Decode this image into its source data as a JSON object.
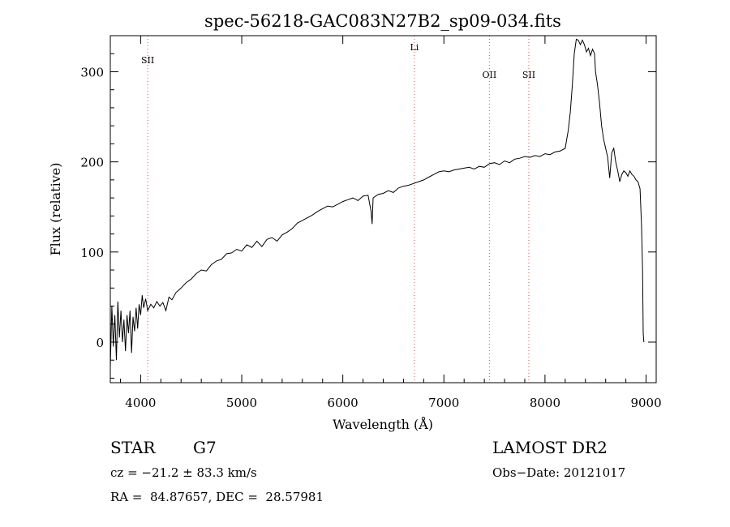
{
  "chart_data": {
    "type": "line",
    "title": "spec-56218-GAC083N27B2_sp09-034.fits",
    "xlabel": "Wavelength (Å)",
    "ylabel": "Flux (relative)",
    "xlim": [
      3700,
      9100
    ],
    "ylim": [
      -45,
      340
    ],
    "grid": false,
    "x_ticks": [
      4000,
      5000,
      6000,
      7000,
      8000,
      9000
    ],
    "y_ticks": [
      0,
      100,
      200,
      300
    ],
    "series": [
      {
        "points": [
          [
            3700,
            -28
          ],
          [
            3715,
            40
          ],
          [
            3730,
            -5
          ],
          [
            3745,
            30
          ],
          [
            3760,
            -20
          ],
          [
            3775,
            45
          ],
          [
            3790,
            5
          ],
          [
            3805,
            35
          ],
          [
            3820,
            0
          ],
          [
            3835,
            25
          ],
          [
            3850,
            -10
          ],
          [
            3865,
            30
          ],
          [
            3880,
            10
          ],
          [
            3895,
            35
          ],
          [
            3910,
            -12
          ],
          [
            3925,
            28
          ],
          [
            3940,
            12
          ],
          [
            3955,
            38
          ],
          [
            3970,
            15
          ],
          [
            3985,
            42
          ],
          [
            4000,
            30
          ],
          [
            4015,
            52
          ],
          [
            4030,
            38
          ],
          [
            4050,
            48
          ],
          [
            4070,
            35
          ],
          [
            4100,
            42
          ],
          [
            4130,
            38
          ],
          [
            4160,
            45
          ],
          [
            4190,
            40
          ],
          [
            4220,
            44
          ],
          [
            4250,
            35
          ],
          [
            4280,
            50
          ],
          [
            4310,
            47
          ],
          [
            4350,
            55
          ],
          [
            4400,
            60
          ],
          [
            4450,
            66
          ],
          [
            4500,
            70
          ],
          [
            4550,
            76
          ],
          [
            4600,
            80
          ],
          [
            4650,
            79
          ],
          [
            4700,
            86
          ],
          [
            4750,
            90
          ],
          [
            4800,
            92
          ],
          [
            4850,
            98
          ],
          [
            4900,
            99
          ],
          [
            4950,
            103
          ],
          [
            5000,
            101
          ],
          [
            5050,
            108
          ],
          [
            5100,
            105
          ],
          [
            5150,
            112
          ],
          [
            5200,
            106
          ],
          [
            5250,
            114
          ],
          [
            5300,
            116
          ],
          [
            5350,
            112
          ],
          [
            5400,
            119
          ],
          [
            5450,
            122
          ],
          [
            5500,
            126
          ],
          [
            5550,
            132
          ],
          [
            5600,
            135
          ],
          [
            5650,
            138
          ],
          [
            5700,
            141
          ],
          [
            5750,
            145
          ],
          [
            5800,
            148
          ],
          [
            5850,
            151
          ],
          [
            5900,
            150
          ],
          [
            5950,
            153
          ],
          [
            6000,
            156
          ],
          [
            6050,
            158
          ],
          [
            6100,
            160
          ],
          [
            6150,
            157
          ],
          [
            6200,
            162
          ],
          [
            6250,
            163
          ],
          [
            6280,
            145
          ],
          [
            6290,
            131
          ],
          [
            6300,
            160
          ],
          [
            6350,
            164
          ],
          [
            6400,
            165
          ],
          [
            6450,
            168
          ],
          [
            6500,
            166
          ],
          [
            6550,
            171
          ],
          [
            6600,
            173
          ],
          [
            6650,
            174
          ],
          [
            6700,
            176
          ],
          [
            6750,
            178
          ],
          [
            6800,
            180
          ],
          [
            6850,
            183
          ],
          [
            6900,
            186
          ],
          [
            6950,
            189
          ],
          [
            7000,
            190
          ],
          [
            7050,
            189
          ],
          [
            7100,
            191
          ],
          [
            7150,
            192
          ],
          [
            7200,
            193
          ],
          [
            7250,
            194
          ],
          [
            7300,
            192
          ],
          [
            7350,
            195
          ],
          [
            7400,
            194
          ],
          [
            7450,
            198
          ],
          [
            7500,
            199
          ],
          [
            7550,
            197
          ],
          [
            7600,
            201
          ],
          [
            7650,
            199
          ],
          [
            7700,
            203
          ],
          [
            7750,
            204
          ],
          [
            7800,
            206
          ],
          [
            7850,
            205
          ],
          [
            7900,
            207
          ],
          [
            7950,
            206
          ],
          [
            8000,
            209
          ],
          [
            8050,
            208
          ],
          [
            8100,
            211
          ],
          [
            8150,
            212
          ],
          [
            8200,
            215
          ],
          [
            8230,
            235
          ],
          [
            8250,
            255
          ],
          [
            8270,
            285
          ],
          [
            8290,
            320
          ],
          [
            8310,
            336
          ],
          [
            8330,
            335
          ],
          [
            8350,
            330
          ],
          [
            8370,
            335
          ],
          [
            8390,
            330
          ],
          [
            8410,
            322
          ],
          [
            8430,
            326
          ],
          [
            8450,
            318
          ],
          [
            8470,
            325
          ],
          [
            8490,
            320
          ],
          [
            8500,
            300
          ],
          [
            8520,
            285
          ],
          [
            8540,
            265
          ],
          [
            8560,
            240
          ],
          [
            8580,
            225
          ],
          [
            8600,
            215
          ],
          [
            8620,
            205
          ],
          [
            8640,
            182
          ],
          [
            8660,
            210
          ],
          [
            8680,
            215
          ],
          [
            8700,
            200
          ],
          [
            8720,
            190
          ],
          [
            8740,
            178
          ],
          [
            8760,
            186
          ],
          [
            8780,
            190
          ],
          [
            8800,
            188
          ],
          [
            8820,
            184
          ],
          [
            8840,
            190
          ],
          [
            8860,
            186
          ],
          [
            8880,
            184
          ],
          [
            8900,
            180
          ],
          [
            8920,
            178
          ],
          [
            8940,
            170
          ],
          [
            8955,
            130
          ],
          [
            8965,
            80
          ],
          [
            8972,
            10
          ],
          [
            8978,
            0
          ]
        ]
      }
    ],
    "lines": [
      {
        "label": "SII",
        "x": 4070
      },
      {
        "label": "Li",
        "x": 6708
      },
      {
        "label": "OII",
        "x": 7450
      },
      {
        "label": "SII",
        "x": 7840
      }
    ],
    "colors": {
      "line": "#000000",
      "marker_lines": "#e05050"
    }
  },
  "info": {
    "object_class": "STAR",
    "subclass": "G7",
    "survey": "LAMOST DR2",
    "cz": "cz = −21.2 ± 83.3 km/s",
    "obs_date": "Obs−Date: 20121017",
    "coords": "RA =  84.87657, DEC =  28.57981"
  }
}
